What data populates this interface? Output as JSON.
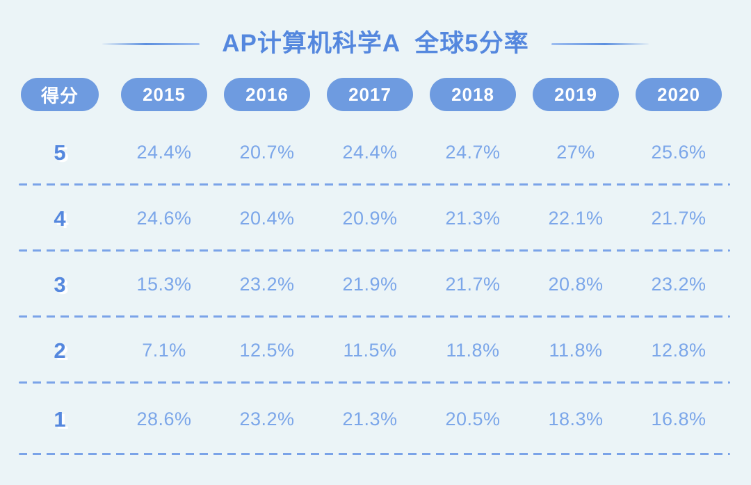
{
  "colors": {
    "background": "#ebf4f7",
    "pill_blue": "#6e9be0",
    "pill_text": "#ffffff",
    "title_blue": "#5487de",
    "value_blue": "#7ba6e9",
    "dash_blue": "#7aa3e8"
  },
  "chart_data": {
    "type": "table",
    "title": "AP计算机科学A  全球5分率",
    "columns": [
      "得分",
      "2015",
      "2016",
      "2017",
      "2018",
      "2019",
      "2020"
    ],
    "rows": [
      {
        "score": "5",
        "values": [
          "24.4%",
          "20.7%",
          "24.4%",
          "24.7%",
          "27%",
          "25.6%"
        ]
      },
      {
        "score": "4",
        "values": [
          "24.6%",
          "20.4%",
          "20.9%",
          "21.3%",
          "22.1%",
          "21.7%"
        ]
      },
      {
        "score": "3",
        "values": [
          "15.3%",
          "23.2%",
          "21.9%",
          "21.7%",
          "20.8%",
          "23.2%"
        ]
      },
      {
        "score": "2",
        "values": [
          "7.1%",
          "12.5%",
          "11.5%",
          "11.8%",
          "11.8%",
          "12.8%"
        ]
      },
      {
        "score": "1",
        "values": [
          "28.6%",
          "23.2%",
          "21.3%",
          "20.5%",
          "18.3%",
          "16.8%"
        ]
      }
    ]
  }
}
